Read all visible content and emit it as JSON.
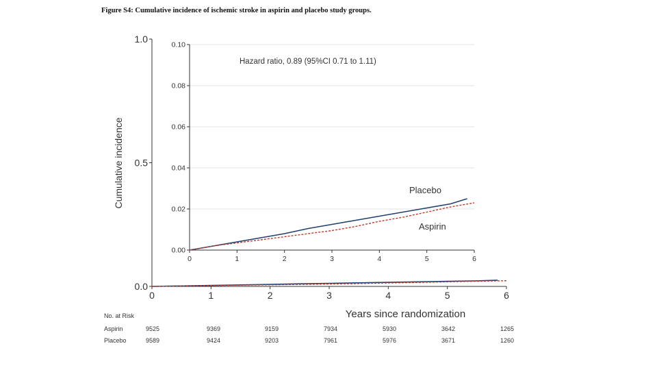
{
  "figure_title": "Figure S4: Cumulative incidence of ischemic stroke in aspirin and placebo study groups.",
  "colors": {
    "placebo": "#1f3f6e",
    "aspirin": "#c0392b"
  },
  "chart_data": [
    {
      "type": "line",
      "panel": "main",
      "xlabel": "Years since randomization",
      "ylabel": "Cumulative incidence",
      "xlim": [
        0,
        6
      ],
      "ylim": [
        0,
        1
      ],
      "x_ticks": [
        "0",
        "1",
        "2",
        "3",
        "4",
        "5",
        "6"
      ],
      "y_ticks": [
        "0.0",
        "0.5",
        "1.0"
      ],
      "series": [
        {
          "name": "Placebo",
          "style": "solid",
          "x": [
            0,
            0.5,
            1,
            1.5,
            2,
            2.5,
            3,
            3.5,
            4,
            4.5,
            5,
            5.5,
            5.85
          ],
          "y": [
            0,
            0.002,
            0.004,
            0.006,
            0.008,
            0.0105,
            0.0125,
            0.0145,
            0.0165,
            0.0185,
            0.0205,
            0.0225,
            0.025
          ]
        },
        {
          "name": "Aspirin",
          "style": "dashed",
          "x": [
            0,
            0.5,
            1,
            1.5,
            2,
            2.5,
            3,
            3.5,
            4,
            4.5,
            5,
            5.5,
            6
          ],
          "y": [
            0,
            0.002,
            0.0035,
            0.005,
            0.0065,
            0.008,
            0.0095,
            0.0115,
            0.014,
            0.016,
            0.0185,
            0.021,
            0.023
          ]
        }
      ]
    },
    {
      "type": "line",
      "panel": "inset",
      "annotation": "Hazard ratio, 0.89 (95%CI 0.71 to 1.11)",
      "xlim": [
        0,
        6
      ],
      "ylim": [
        0,
        0.1
      ],
      "grid": true,
      "x_ticks": [
        "0",
        "1",
        "2",
        "3",
        "4",
        "5",
        "6"
      ],
      "y_ticks": [
        "0.00",
        "0.02",
        "0.04",
        "0.06",
        "0.08",
        "0.10"
      ],
      "series": [
        {
          "name": "Placebo",
          "style": "solid",
          "x": [
            0,
            0.5,
            1,
            1.5,
            2,
            2.5,
            3,
            3.5,
            4,
            4.5,
            5,
            5.5,
            5.85
          ],
          "y": [
            0,
            0.002,
            0.004,
            0.006,
            0.008,
            0.0105,
            0.0125,
            0.0145,
            0.0165,
            0.0185,
            0.0205,
            0.0225,
            0.025
          ]
        },
        {
          "name": "Aspirin",
          "style": "dashed",
          "x": [
            0,
            0.5,
            1,
            1.5,
            2,
            2.5,
            3,
            3.5,
            4,
            4.5,
            5,
            5.5,
            6
          ],
          "y": [
            0,
            0.002,
            0.0035,
            0.005,
            0.0065,
            0.008,
            0.0095,
            0.0115,
            0.014,
            0.016,
            0.0185,
            0.021,
            0.023
          ]
        }
      ]
    }
  ],
  "risk_table": {
    "title": "No. at Risk",
    "rows": [
      {
        "label": "Aspirin",
        "values": [
          "9525",
          "9369",
          "9159",
          "7934",
          "5930",
          "3642",
          "1265"
        ]
      },
      {
        "label": "Placebo",
        "values": [
          "9589",
          "9424",
          "9203",
          "7961",
          "5976",
          "3671",
          "1260"
        ]
      }
    ]
  }
}
